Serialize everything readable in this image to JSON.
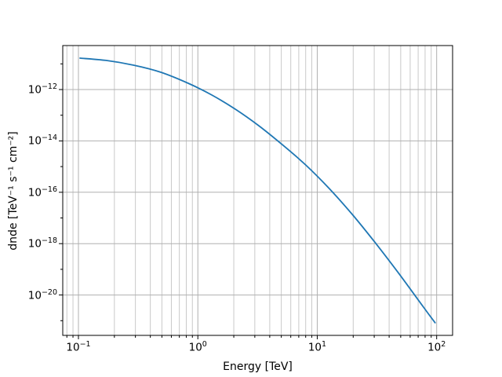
{
  "figure": {
    "background": "#ffffff"
  },
  "chart_data": {
    "type": "line",
    "title": "",
    "xlabel": "Energy [TeV]",
    "ylabel": "dnde [TeV⁻¹ s⁻¹ cm⁻²]",
    "xscale": "log",
    "yscale": "log",
    "grid": "on",
    "legend": "none",
    "x_axis": {
      "tick_exponents": [
        -1,
        0,
        1,
        2
      ],
      "minor_subs": [
        2,
        3,
        4,
        5,
        6,
        7,
        8,
        9
      ],
      "lim_exp": [
        -1.1314,
        2.1334
      ]
    },
    "y_axis": {
      "tick_exponents": [
        -12,
        -14,
        -16,
        -18,
        -20
      ],
      "minor_exponents": [
        -21,
        -19,
        -17,
        -15,
        -13,
        -11
      ],
      "lim_exp": [
        -21.572,
        -10.287
      ]
    },
    "series": [
      {
        "name": "dnde",
        "color": "#1f77b4",
        "line_width": 1.8,
        "x": [
          0.103,
          0.17,
          0.29,
          0.49,
          0.83,
          1.31,
          2.06,
          3.24,
          5.09,
          8.0,
          12.6,
          19.9,
          31.3,
          49.2,
          77.4,
          97.1
        ],
        "y": [
          1.67e-11,
          1.36e-11,
          8.9e-12,
          4.7e-12,
          1.76e-12,
          6.1e-13,
          1.72e-13,
          3.9e-14,
          7.2e-15,
          1.16e-15,
          1.4e-16,
          1.28e-17,
          9.5e-19,
          6.1e-20,
          3.4e-21,
          8.3e-22
        ]
      }
    ],
    "colors": {
      "grid_major": "#b0b0b0",
      "grid_minor": "#c9c9c9",
      "spine": "#000000",
      "text": "#000000"
    }
  }
}
